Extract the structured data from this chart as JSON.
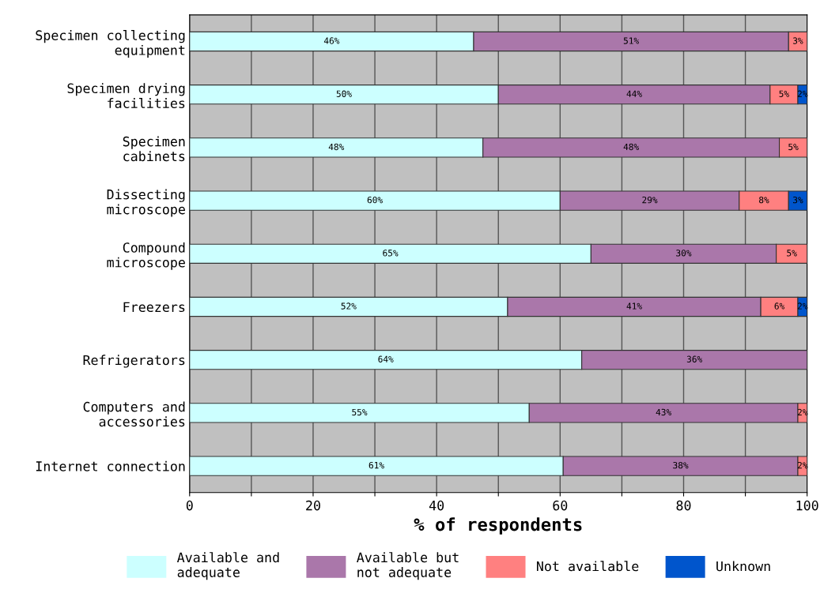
{
  "chart_data": {
    "type": "bar",
    "orientation": "horizontal",
    "stacked": true,
    "xlabel": "% of respondents",
    "categories": [
      "Specimen collecting\nequipment",
      "Specimen drying\nfacilities",
      "Specimen\ncabinets",
      "Dissecting\nmicroscope",
      "Compound\nmicroscope",
      "Freezers",
      "Refrigerators",
      "Computers and\naccessories",
      "Internet connection"
    ],
    "series": [
      {
        "name": "Available and\nadequate",
        "color": "#ccffff",
        "values": [
          46,
          50,
          47.5,
          60,
          65,
          51.5,
          63.5,
          55,
          60.5
        ],
        "value_labels": [
          "46%",
          "50%",
          "48%",
          "60%",
          "65%",
          "52%",
          "64%",
          "55%",
          "61%"
        ]
      },
      {
        "name": "Available but\nnot adequate",
        "color": "#aa77aa",
        "values": [
          51,
          44,
          48,
          29,
          30,
          41,
          36.5,
          43.5,
          38
        ],
        "value_labels": [
          "51%",
          "44%",
          "48%",
          "29%",
          "30%",
          "41%",
          "36%",
          "43%",
          "38%"
        ]
      },
      {
        "name": "Not available",
        "color": "#ff8080",
        "values": [
          3,
          4.5,
          4.5,
          8,
          5,
          6,
          null,
          1.5,
          1.5
        ],
        "value_labels": [
          "3%",
          "5%",
          "5%",
          "8%",
          "5%",
          "6%",
          null,
          "2%",
          "2%"
        ]
      },
      {
        "name": "Unknown",
        "color": "#0055cc",
        "values": [
          null,
          1.5,
          null,
          3,
          null,
          1.5,
          null,
          null,
          null
        ],
        "value_labels": [
          null,
          "2%",
          null,
          "3%",
          null,
          "2%",
          null,
          null,
          null
        ]
      }
    ],
    "xlim": [
      0,
      100
    ],
    "xticks": [
      0,
      {
        "value": 10,
        "label": null
      },
      20,
      {
        "value": 30,
        "label": null
      },
      40,
      {
        "value": 50,
        "label": null
      },
      60,
      {
        "value": 70,
        "label": null
      },
      80,
      {
        "value": 90,
        "label": null
      },
      100
    ],
    "grid": "x",
    "legend": "bottom"
  }
}
